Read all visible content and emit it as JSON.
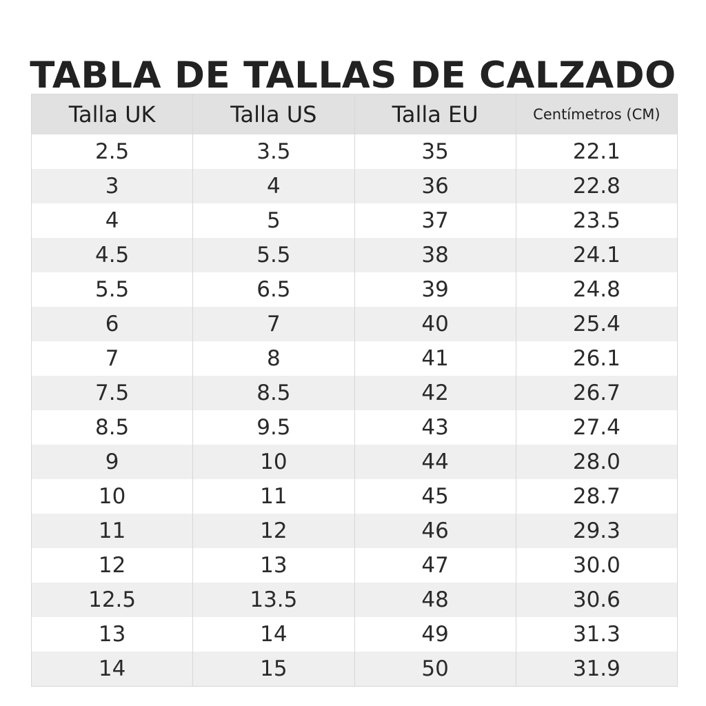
{
  "title": "TABLA DE TALLAS DE CALZADO",
  "table": {
    "headers": [
      "Talla UK",
      "Talla US",
      "Talla EU",
      "Centímetros (CM)"
    ],
    "rows": [
      [
        "2.5",
        "3.5",
        "35",
        "22.1"
      ],
      [
        "3",
        "4",
        "36",
        "22.8"
      ],
      [
        "4",
        "5",
        "37",
        "23.5"
      ],
      [
        "4.5",
        "5.5",
        "38",
        "24.1"
      ],
      [
        "5.5",
        "6.5",
        "39",
        "24.8"
      ],
      [
        "6",
        "7",
        "40",
        "25.4"
      ],
      [
        "7",
        "8",
        "41",
        "26.1"
      ],
      [
        "7.5",
        "8.5",
        "42",
        "26.7"
      ],
      [
        "8.5",
        "9.5",
        "43",
        "27.4"
      ],
      [
        "9",
        "10",
        "44",
        "28.0"
      ],
      [
        "10",
        "11",
        "45",
        "28.7"
      ],
      [
        "11",
        "12",
        "46",
        "29.3"
      ],
      [
        "12",
        "13",
        "47",
        "30.0"
      ],
      [
        "12.5",
        "13.5",
        "48",
        "30.6"
      ],
      [
        "13",
        "14",
        "49",
        "31.3"
      ],
      [
        "14",
        "15",
        "50",
        "31.9"
      ]
    ]
  },
  "colors": {
    "header_bg": "#e1e1e1",
    "row_alt_bg": "#efefef",
    "row_bg": "#ffffff",
    "text": "#1e1e1e",
    "border": "#d7d7d7"
  }
}
